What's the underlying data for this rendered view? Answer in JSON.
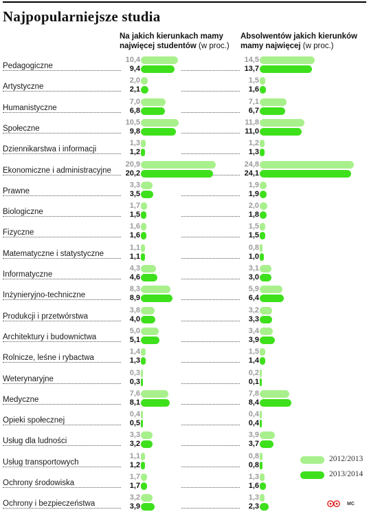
{
  "title": "Najpopularniejsze studia",
  "headers": {
    "left_bold": "Na jakich kierunkach mamy najwięcej studentów",
    "left_unit": "(w proc.)",
    "right_bold": "Absolwentów jakich kierunków mamy najwięcej",
    "right_unit": "(w proc.)"
  },
  "legend": [
    {
      "label": "2012/2013",
      "color": "#a8f08c"
    },
    {
      "label": "2013/2014",
      "color": "#3ee01c"
    }
  ],
  "credit": "MC",
  "chart_data": {
    "type": "bar",
    "orientation": "horizontal",
    "title": "Najpopularniejsze studia",
    "series_names": [
      "2012/2013",
      "2013/2014"
    ],
    "categories": [
      "Pedagogiczne",
      "Artystyczne",
      "Humanistyczne",
      "Społeczne",
      "Dziennikarstwa i informacji",
      "Ekonomiczne i administracyjne",
      "Prawne",
      "Biologiczne",
      "Fizyczne",
      "Matematyczne i statystyczne",
      "Informatyczne",
      "Inżynieryjno-techniczne",
      "Produkcji i przetwórstwa",
      "Architektury i budownictwa",
      "Rolnicze, leśne i rybactwa",
      "Weterynaryjne",
      "Medyczne",
      "Opieki społecznej",
      "Usług dla ludności",
      "Usług transportowych",
      "Ochrony środowiska",
      "Ochrony i bezpieczeństwa"
    ],
    "panels": [
      {
        "name": "Na jakich kierunkach mamy najwięcej studentów (w proc.)",
        "series": [
          {
            "name": "2012/2013",
            "values": [
              "10,4",
              "2,0",
              "7,0",
              "10,5",
              "1,3",
              "20,9",
              "3,3",
              "1,7",
              "1,6",
              "1,1",
              "4,3",
              "8,3",
              "3,8",
              "5,0",
              "1,4",
              "0,3",
              "7,6",
              "0,4",
              "3,3",
              "1,1",
              "1,7",
              "3,2"
            ]
          },
          {
            "name": "2013/2014",
            "values": [
              "9,4",
              "2,1",
              "6,8",
              "9,8",
              "1,2",
              "20,2",
              "3,5",
              "1,5",
              "1,6",
              "1,1",
              "4,6",
              "8,9",
              "4,0",
              "5,1",
              "1,3",
              "0,3",
              "8,1",
              "0,5",
              "3,2",
              "1,2",
              "1,7",
              "3,9"
            ]
          }
        ]
      },
      {
        "name": "Absolwentów jakich kierunków mamy najwięcej (w proc.)",
        "series": [
          {
            "name": "2012/2013",
            "values": [
              "14,5",
              "1,5",
              "7,1",
              "11,8",
              "1,2",
              "24,8",
              "1,9",
              "2,0",
              "1,5",
              "0,8",
              "3,1",
              "5,9",
              "3,2",
              "3,4",
              "1,5",
              "0,2",
              "7,8",
              "0,4",
              "3,9",
              "0,8",
              "1,3",
              "1,3"
            ]
          },
          {
            "name": "2013/2014",
            "values": [
              "13,7",
              "1,6",
              "6,7",
              "11,0",
              "1,3",
              "24,1",
              "1,9",
              "1,8",
              "1,5",
              "1,0",
              "3,0",
              "6,4",
              "3,3",
              "3,9",
              "1,4",
              "0,1",
              "8,4",
              "0,4",
              "3,7",
              "0,8",
              "1,6",
              "2,3"
            ]
          }
        ]
      }
    ]
  }
}
